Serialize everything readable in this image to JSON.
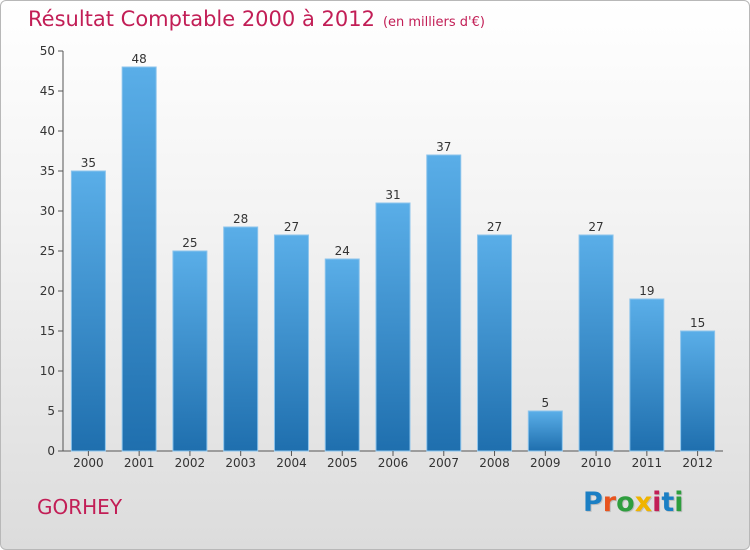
{
  "chart_data": {
    "type": "bar",
    "title": "Résultat Comptable 2000 à 2012",
    "subtitle": "(en milliers d'€)",
    "categories": [
      "2000",
      "2001",
      "2002",
      "2003",
      "2004",
      "2005",
      "2006",
      "2007",
      "2008",
      "2009",
      "2010",
      "2011",
      "2012"
    ],
    "values": [
      35,
      48,
      25,
      28,
      27,
      24,
      31,
      37,
      27,
      5,
      27,
      19,
      15
    ],
    "yticks": [
      0,
      5,
      10,
      15,
      20,
      25,
      30,
      35,
      40,
      45,
      50
    ],
    "ylim": [
      0,
      50
    ],
    "grid": false,
    "colors": {
      "bar_light": "#5aaee8",
      "bar_dark": "#1f6fae",
      "title": "#c21e56",
      "axis": "#555555"
    }
  },
  "commune": "GORHEY",
  "logo": {
    "text": "Proxiti",
    "letter_colors": [
      "#1b7fc4",
      "#e8541e",
      "#2e9e3e",
      "#f0b400",
      "#c21e56",
      "#1b7fc4",
      "#2e9e3e"
    ]
  }
}
